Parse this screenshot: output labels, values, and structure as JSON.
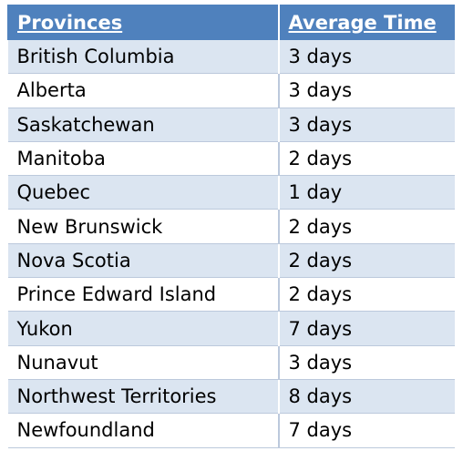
{
  "table": {
    "header": [
      "Provinces",
      "Average Time"
    ],
    "rows": [
      [
        "British Columbia",
        "3 days"
      ],
      [
        "Alberta",
        "3 days"
      ],
      [
        "Saskatchewan",
        "3 days"
      ],
      [
        "Manitoba",
        "2 days"
      ],
      [
        "Quebec",
        "1 day"
      ],
      [
        "New Brunswick",
        "2 days"
      ],
      [
        "Nova Scotia",
        "2 days"
      ],
      [
        "Prince Edward Island",
        "2 days"
      ],
      [
        "Yukon",
        "7 days"
      ],
      [
        "Nunavut",
        "3 days"
      ],
      [
        "Northwest Territories",
        "8 days"
      ],
      [
        "Newfoundland",
        "7 days"
      ]
    ]
  }
}
